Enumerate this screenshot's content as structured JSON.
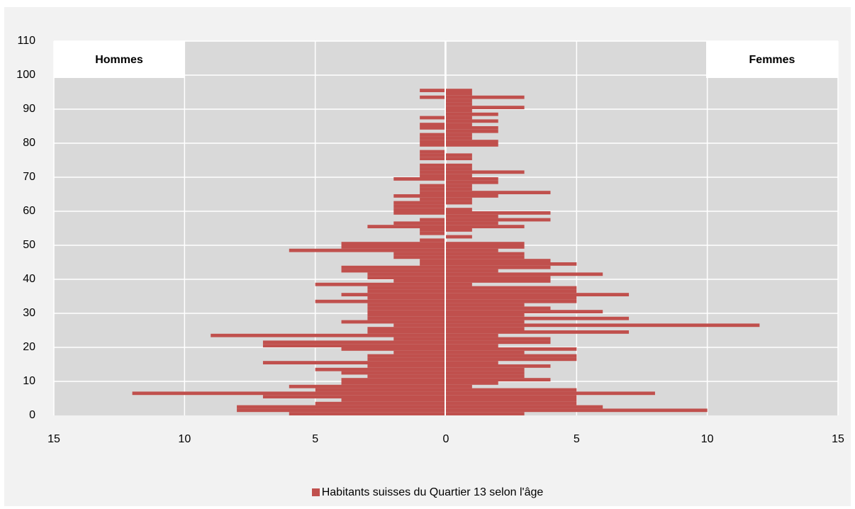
{
  "chart_data": {
    "type": "bar",
    "orientation": "horizontal-population-pyramid",
    "title": "",
    "xlabel": "",
    "ylabel": "",
    "left_label": "Hommes",
    "right_label": "Femmes",
    "xlim": [
      -15,
      15
    ],
    "ylim": [
      0,
      110
    ],
    "x_ticks": [
      -15,
      -10,
      -5,
      0,
      5,
      10,
      15
    ],
    "x_tick_labels": [
      "15",
      "10",
      "5",
      "0",
      "5",
      "10",
      "15"
    ],
    "y_ticks": [
      0,
      10,
      20,
      30,
      40,
      50,
      60,
      70,
      80,
      90,
      100,
      110
    ],
    "y_tick_labels": [
      "0",
      "10",
      "20",
      "30",
      "40",
      "50",
      "60",
      "70",
      "80",
      "90",
      "100",
      "110"
    ],
    "grid": true,
    "legend_position": "bottom",
    "series_color": "#c0504d",
    "plot_background": "#d9d9d9",
    "panel_label_background": "#ffffff",
    "ages": [
      0,
      1,
      2,
      3,
      4,
      5,
      6,
      7,
      8,
      9,
      10,
      11,
      12,
      13,
      14,
      15,
      16,
      17,
      18,
      19,
      20,
      21,
      22,
      23,
      24,
      25,
      26,
      27,
      28,
      29,
      30,
      31,
      32,
      33,
      34,
      35,
      36,
      37,
      38,
      39,
      40,
      41,
      42,
      43,
      44,
      45,
      46,
      47,
      48,
      49,
      50,
      51,
      52,
      53,
      54,
      55,
      56,
      57,
      58,
      59,
      60,
      61,
      62,
      63,
      64,
      65,
      66,
      67,
      68,
      69,
      70,
      71,
      72,
      73,
      74,
      75,
      76,
      77,
      78,
      79,
      80,
      81,
      82,
      83,
      84,
      85,
      86,
      87,
      88,
      89,
      90,
      91,
      92,
      93,
      94,
      95
    ],
    "series": [
      {
        "name": "Hommes",
        "values": [
          6,
          8,
          8,
          5,
          4,
          7,
          12,
          5,
          6,
          4,
          4,
          3,
          4,
          5,
          3,
          7,
          3,
          3,
          2,
          4,
          7,
          7,
          2,
          9,
          3,
          3,
          2,
          4,
          3,
          3,
          3,
          3,
          3,
          5,
          3,
          4,
          3,
          3,
          5,
          2,
          3,
          3,
          4,
          4,
          1,
          1,
          2,
          2,
          6,
          4,
          4,
          1,
          0,
          1,
          1,
          3,
          2,
          1,
          0,
          2,
          2,
          2,
          2,
          1,
          2,
          1,
          1,
          1,
          0,
          2,
          1,
          1,
          1,
          1,
          0,
          1,
          1,
          1,
          0,
          1,
          1,
          1,
          1,
          0,
          1,
          1,
          0,
          1,
          0,
          0,
          0,
          0,
          0,
          1,
          0,
          1
        ]
      },
      {
        "name": "Femmes",
        "values": [
          3,
          10,
          6,
          5,
          5,
          5,
          8,
          5,
          1,
          2,
          4,
          3,
          3,
          3,
          4,
          2,
          5,
          5,
          3,
          5,
          2,
          4,
          4,
          2,
          7,
          3,
          12,
          3,
          7,
          3,
          6,
          4,
          3,
          5,
          5,
          7,
          5,
          5,
          1,
          4,
          4,
          6,
          2,
          4,
          5,
          4,
          3,
          3,
          2,
          3,
          3,
          0,
          1,
          0,
          1,
          3,
          2,
          4,
          2,
          4,
          1,
          0,
          1,
          1,
          2,
          4,
          1,
          1,
          2,
          2,
          1,
          3,
          1,
          1,
          0,
          1,
          1,
          0,
          0,
          2,
          2,
          1,
          1,
          2,
          2,
          1,
          2,
          1,
          2,
          1,
          3,
          1,
          1,
          3,
          1,
          1
        ]
      }
    ],
    "legend": [
      "Habitants suisses du Quartier 13 selon l'âge"
    ]
  }
}
